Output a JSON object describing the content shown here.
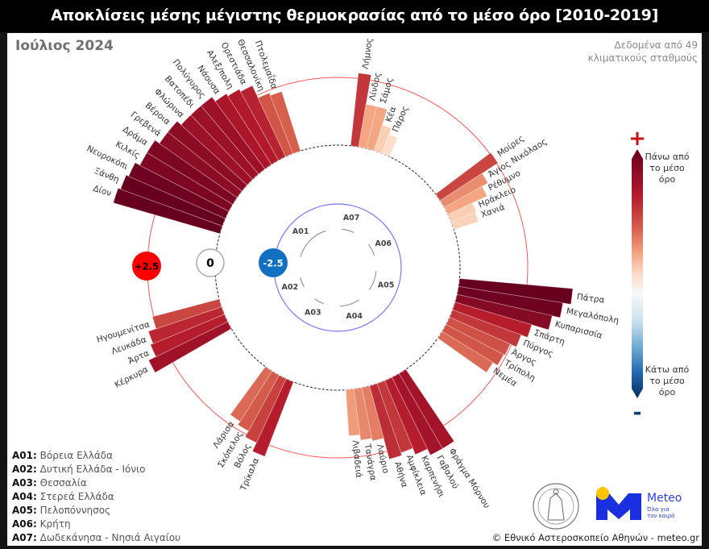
{
  "header": {
    "title": "Αποκλίσεις μέσης μέγιστης θερμοκρασίας από το μέσο όρο [2010-2019]",
    "period": "Ιούλιος 2024",
    "note_line1": "Δεδομένα από 49",
    "note_line2": "κλιματικούς σταθμούς"
  },
  "chart_data": {
    "type": "radial-bar",
    "title": "Αποκλίσεις μέσης μέγιστης θερμοκρασίας από το μέσο όρο [2010-2019]",
    "unit": "°C",
    "reference_rings": [
      {
        "label": "+2.5",
        "value": 2.5,
        "color": "#ff0000"
      },
      {
        "label": "0",
        "value": 0,
        "color": "#ffffff"
      },
      {
        "label": "-2.5",
        "value": -2.5,
        "color": "#1170c0"
      }
    ],
    "groups": [
      {
        "code": "A07",
        "name": "Δωδεκάνησα - Νησιά Αιγαίου",
        "stations": [
          {
            "name": "Λήμνος",
            "value": 2.7
          },
          {
            "name": "Λίνδος",
            "value": 1.6
          },
          {
            "name": "Σάμος",
            "value": 1.6
          },
          {
            "name": "Κέα",
            "value": 1.0
          },
          {
            "name": "Πάρος",
            "value": 0.75
          }
        ]
      },
      {
        "code": "A06",
        "name": "Κρήτη",
        "stations": [
          {
            "name": "Μοίρες",
            "value": 2.55
          },
          {
            "name": "Άγιος Νικόλαος",
            "value": 1.85
          },
          {
            "name": "Ρέθυμνο",
            "value": 1.6
          },
          {
            "name": "Ηράκλειο",
            "value": 1.0
          },
          {
            "name": "Χανιά",
            "value": 0.95
          }
        ]
      },
      {
        "code": "A05",
        "name": "Πελοπόννησος",
        "stations": [
          {
            "name": "Πάτρα",
            "value": 4.2
          },
          {
            "name": "Μεγαλόπολη",
            "value": 3.9
          },
          {
            "name": "Κυπαρισσία",
            "value": 3.6
          },
          {
            "name": "Σπάρτη",
            "value": 2.95
          },
          {
            "name": "Πύργος",
            "value": 2.7
          },
          {
            "name": "Άργος",
            "value": 2.45
          },
          {
            "name": "Τρίπολη",
            "value": 2.4
          },
          {
            "name": "Νεμέα",
            "value": 2.2
          }
        ]
      },
      {
        "code": "A04",
        "name": "Στερεά Ελλάδα",
        "stations": [
          {
            "name": "Φράγμα Μόρνου",
            "value": 3.2
          },
          {
            "name": "Γαβαλού",
            "value": 3.2
          },
          {
            "name": "Καρπενήσι",
            "value": 2.95
          },
          {
            "name": "Αμφίκλεια",
            "value": 2.7
          },
          {
            "name": "Αθήνα",
            "value": 2.8
          },
          {
            "name": "Λαύριο",
            "value": 2.0
          },
          {
            "name": "Τανάγρα",
            "value": 1.9
          },
          {
            "name": "Λιβαδειά",
            "value": 1.7
          }
        ]
      },
      {
        "code": "A03",
        "name": "Θεσσαλία",
        "stations": [
          {
            "name": "Τρίκαλα",
            "value": 2.95
          },
          {
            "name": "Βόλος",
            "value": 2.6
          },
          {
            "name": "Σκόπελος",
            "value": 2.35
          },
          {
            "name": "Λάρισα",
            "value": 2.2
          }
        ]
      },
      {
        "code": "A02",
        "name": "Δυτική Ελλάδα - Ιόνιο",
        "stations": [
          {
            "name": "Κέρκυρα",
            "value": 3.25
          },
          {
            "name": "Άρτα",
            "value": 2.95
          },
          {
            "name": "Λευκάδα",
            "value": 2.85
          },
          {
            "name": "Ηγουμενίτσα",
            "value": 2.55
          }
        ]
      },
      {
        "code": "A01",
        "name": "Βόρεια Ελλάδα",
        "stations": [
          {
            "name": "Δίον",
            "value": 4.1
          },
          {
            "name": "Ξάνθη",
            "value": 4.0
          },
          {
            "name": "Νευροκόπι",
            "value": 3.9
          },
          {
            "name": "Κιλκίς",
            "value": 3.7
          },
          {
            "name": "Δράμα",
            "value": 3.7
          },
          {
            "name": "Γρεβενά",
            "value": 3.5
          },
          {
            "name": "Βέροια",
            "value": 3.5
          },
          {
            "name": "Φλώρινα",
            "value": 3.3
          },
          {
            "name": "Βατοπέδι",
            "value": 3.3
          },
          {
            "name": "Πολύγυρος",
            "value": 3.3
          },
          {
            "name": "Νάουσα",
            "value": 3.1
          },
          {
            "name": "Αλεξ/πολη",
            "value": 3.0
          },
          {
            "name": "Ορεστιάδα",
            "value": 2.9
          },
          {
            "name": "Θεσσαλονίκη",
            "value": 2.4
          },
          {
            "name": "Πτολεμαΐδα",
            "value": 2.3
          }
        ]
      }
    ],
    "colorscale": [
      [
        -4,
        "#053061"
      ],
      [
        -2.5,
        "#2166ac"
      ],
      [
        -1.2,
        "#92c5de"
      ],
      [
        0,
        "#f7f7f7"
      ],
      [
        0.8,
        "#fddbc7"
      ],
      [
        1.6,
        "#f4a582"
      ],
      [
        2.3,
        "#d6604d"
      ],
      [
        3.0,
        "#b2182b"
      ],
      [
        4.0,
        "#67001f"
      ]
    ]
  },
  "colorbar": {
    "plus": "+",
    "minus": "-",
    "top_label": [
      "Πάνω από",
      "το μέσο",
      "όρο"
    ],
    "bottom_label": [
      "Κάτω από",
      "το μέσο",
      "όρο"
    ]
  },
  "legend": [
    {
      "code": "A01:",
      "name": "Βόρεια Ελλάδα"
    },
    {
      "code": "A02:",
      "name": "Δυτική Ελλάδα - Ιόνιο"
    },
    {
      "code": "A03:",
      "name": "Θεσσαλία"
    },
    {
      "code": "A04:",
      "name": "Στερεά Ελλάδα"
    },
    {
      "code": "A05:",
      "name": "Πελοπόννησος"
    },
    {
      "code": "A06:",
      "name": "Κρήτη"
    },
    {
      "code": "A07:",
      "name": "Δωδεκάνησα - Νησιά Αιγαίου"
    }
  ],
  "footer": {
    "copyright": "© Εθνικό Αστεροσκοπείο Αθηνών - meteo.gr",
    "meteo_name": "Meteo",
    "meteo_tagline": "Όλα για τον καιρό",
    "logos": [
      "noa-seal-logo",
      "meteo-logo"
    ]
  }
}
